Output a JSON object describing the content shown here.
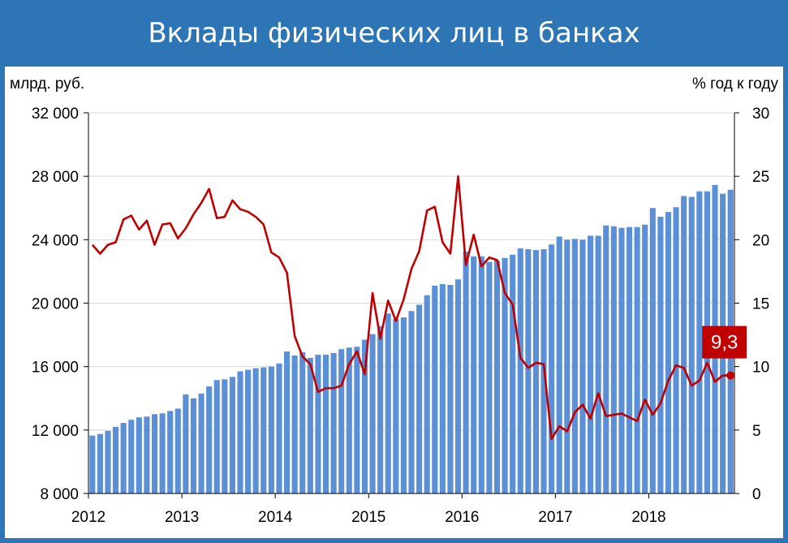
{
  "title": "Вклады физических лиц в банках",
  "colors": {
    "background": "#2e75b6",
    "bar": "#5b8fd6",
    "line": "#c00000",
    "callout": "#c00000"
  },
  "chart_data": {
    "type": "bar+line",
    "left_unit": "млрд. руб.",
    "right_unit": "% год к году",
    "x_tick_labels": [
      "2012",
      "2013",
      "2014",
      "2015",
      "2016",
      "2017",
      "2018"
    ],
    "y_left": {
      "min": 8000,
      "max": 32000,
      "ticks": [
        "8 000",
        "12 000",
        "16 000",
        "20 000",
        "24 000",
        "28 000",
        "32 000"
      ],
      "tick_values": [
        8000,
        12000,
        16000,
        20000,
        24000,
        28000,
        32000
      ]
    },
    "y_right": {
      "min": 0,
      "max": 30,
      "ticks": [
        "0",
        "5",
        "10",
        "15",
        "20",
        "25",
        "30"
      ],
      "tick_values": [
        0,
        5,
        10,
        15,
        20,
        25,
        30
      ]
    },
    "grid": true,
    "series": [
      {
        "kind": "bar",
        "axis": "left",
        "values": [
          11650,
          11750,
          11950,
          12200,
          12450,
          12650,
          12800,
          12850,
          13000,
          13050,
          13200,
          13350,
          14250,
          14000,
          14300,
          14750,
          15150,
          15200,
          15350,
          15700,
          15800,
          15900,
          15950,
          16000,
          16200,
          16950,
          16700,
          16900,
          16550,
          16750,
          16750,
          16850,
          17100,
          17200,
          17250,
          17700,
          18050,
          18550,
          19350,
          19000,
          19100,
          19500,
          19900,
          20500,
          21100,
          21200,
          21150,
          21500,
          23250,
          22950,
          22950,
          22600,
          22700,
          22850,
          23050,
          23450,
          23400,
          23350,
          23400,
          23700,
          24200,
          24000,
          24050,
          24000,
          24250,
          24250,
          24900,
          24850,
          24750,
          24800,
          24800,
          24950,
          26000,
          25450,
          25750,
          26050,
          26750,
          26700,
          27050,
          27050,
          27450,
          26900,
          27150
        ]
      },
      {
        "kind": "line",
        "axis": "right",
        "values": [
          19.6,
          18.9,
          19.6,
          19.8,
          21.6,
          21.9,
          20.8,
          21.5,
          19.6,
          21.2,
          21.3,
          20.1,
          20.9,
          22.0,
          22.9,
          24.0,
          21.7,
          21.8,
          23.1,
          22.4,
          22.2,
          21.8,
          21.2,
          19.0,
          18.6,
          17.4,
          12.4,
          10.8,
          10.2,
          8.0,
          8.3,
          8.3,
          8.5,
          10.2,
          11.2,
          9.4,
          15.8,
          12.2,
          15.2,
          13.6,
          15.3,
          17.7,
          19.1,
          22.3,
          22.6,
          19.8,
          18.9,
          25.0,
          18.0,
          20.4,
          17.9,
          18.6,
          18.4,
          15.8,
          14.9,
          10.7,
          9.9,
          10.3,
          10.2,
          4.3,
          5.3,
          4.9,
          6.4,
          7.0,
          5.9,
          7.9,
          6.1,
          6.2,
          6.3,
          6.0,
          5.7,
          7.4,
          6.2,
          7.1,
          8.9,
          10.1,
          9.9,
          8.5,
          8.9,
          10.3,
          8.8,
          9.3,
          9.3
        ]
      }
    ],
    "annotation": "9,3"
  }
}
